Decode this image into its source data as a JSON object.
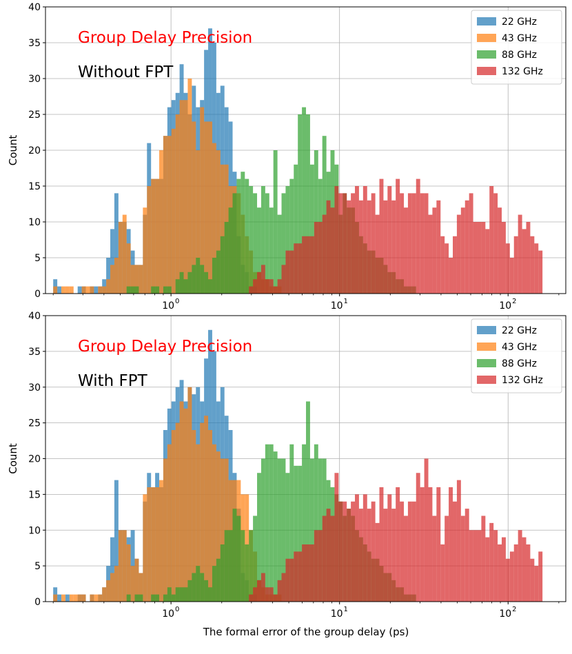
{
  "figure": {
    "xlabel": "The formal error of the group delay (ps)"
  },
  "colors": {
    "22 GHz": "#1f77b4",
    "43 GHz": "#ff7f0e",
    "88 GHz": "#2ca02c",
    "132 GHz": "#d62728"
  },
  "chart_data": [
    {
      "type": "bar",
      "histogram": true,
      "xscale": "log",
      "xlim": [
        0.18,
        220
      ],
      "ylim": [
        0,
        40
      ],
      "yticks": [
        0,
        5,
        10,
        15,
        20,
        25,
        30,
        35,
        40
      ],
      "xticks": [
        {
          "value": 1,
          "label": "10",
          "exp": "0"
        },
        {
          "value": 10,
          "label": "10",
          "exp": "1"
        },
        {
          "value": 100,
          "label": "10",
          "exp": "2"
        }
      ],
      "ylabel": "Count",
      "xlabel": "",
      "grid": true,
      "legend_position": "top-right",
      "annotations": [
        {
          "text": "Group Delay Precision",
          "color": "#ff0000"
        },
        {
          "text": "Without FPT",
          "color": "#000000"
        }
      ],
      "bin_edges_range": [
        0.2,
        160
      ],
      "bin_count": 120,
      "series": [
        {
          "name": "22 GHz",
          "values": [
            2,
            1,
            0,
            0,
            0,
            0,
            1,
            1,
            0,
            1,
            1,
            1,
            2,
            5,
            9,
            14,
            10,
            10,
            9,
            6,
            4,
            4,
            11,
            21,
            16,
            16,
            16,
            22,
            26,
            27,
            28,
            32,
            28,
            25,
            29,
            26,
            27,
            34,
            37,
            35,
            28,
            29,
            26,
            24,
            17,
            8,
            4,
            3,
            1,
            1,
            0,
            0,
            0,
            0,
            0,
            0,
            0,
            0,
            0,
            0,
            0,
            0,
            0,
            0,
            0,
            0,
            0,
            0,
            0,
            0,
            0,
            0,
            0,
            0,
            0,
            0,
            0,
            0,
            0,
            0,
            0,
            0,
            0,
            0,
            0,
            0,
            0,
            0,
            0,
            0,
            0,
            0,
            0,
            0,
            0,
            0,
            0,
            0,
            0,
            0,
            0,
            0,
            0,
            0,
            0,
            0,
            0,
            0,
            0,
            0,
            0,
            0,
            0,
            0,
            0,
            0,
            0,
            0,
            0,
            0
          ]
        },
        {
          "name": "43 GHz",
          "values": [
            1,
            0,
            1,
            1,
            1,
            0,
            0,
            1,
            1,
            1,
            0,
            1,
            1,
            2,
            4,
            5,
            10,
            11,
            7,
            4,
            4,
            4,
            12,
            15,
            16,
            16,
            20,
            22,
            22,
            23,
            25,
            27,
            27,
            30,
            24,
            20,
            26,
            24,
            24,
            21,
            20,
            18,
            18,
            15,
            15,
            14,
            11,
            8,
            6,
            3,
            3,
            2,
            2,
            1,
            1,
            1,
            0,
            0,
            0,
            0,
            0,
            0,
            0,
            0,
            0,
            0,
            0,
            0,
            0,
            0,
            0,
            0,
            0,
            0,
            0,
            0,
            0,
            0,
            0,
            0,
            0,
            0,
            0,
            0,
            0,
            0,
            0,
            0,
            0,
            0,
            0,
            0,
            0,
            0,
            0,
            0,
            0,
            0,
            0,
            0,
            0,
            0,
            0,
            0,
            0,
            0,
            0,
            0,
            0,
            0,
            0,
            0,
            0,
            0,
            0,
            0,
            0,
            0,
            0,
            0
          ]
        },
        {
          "name": "88 GHz",
          "values": [
            0,
            0,
            0,
            0,
            0,
            0,
            0,
            0,
            0,
            0,
            0,
            0,
            0,
            0,
            0,
            0,
            0,
            0,
            1,
            1,
            1,
            0,
            0,
            0,
            1,
            1,
            0,
            1,
            1,
            0,
            2,
            3,
            2,
            3,
            4,
            5,
            4,
            3,
            2,
            5,
            6,
            8,
            10,
            12,
            14,
            16,
            17,
            16,
            15,
            14,
            12,
            15,
            14,
            12,
            20,
            11,
            14,
            15,
            16,
            18,
            25,
            26,
            25,
            18,
            20,
            16,
            22,
            17,
            20,
            18,
            11,
            14,
            12,
            12,
            10,
            8,
            7,
            6,
            6,
            5,
            5,
            4,
            3,
            3,
            2,
            2,
            1,
            1,
            1,
            0,
            0,
            0,
            0,
            0,
            0,
            0,
            0,
            0,
            0,
            0,
            0,
            0,
            0,
            0,
            0,
            0,
            0,
            0,
            0,
            0,
            0,
            0,
            0,
            0,
            0,
            0,
            0,
            0,
            0,
            0
          ]
        },
        {
          "name": "132 GHz",
          "values": [
            0,
            0,
            0,
            0,
            0,
            0,
            0,
            0,
            0,
            0,
            0,
            0,
            0,
            0,
            0,
            0,
            0,
            0,
            0,
            0,
            0,
            0,
            0,
            0,
            0,
            0,
            0,
            0,
            0,
            0,
            0,
            0,
            0,
            0,
            0,
            0,
            0,
            0,
            0,
            0,
            0,
            0,
            0,
            0,
            0,
            0,
            0,
            0,
            1,
            2,
            3,
            4,
            2,
            2,
            1,
            2,
            4,
            6,
            6,
            7,
            7,
            8,
            8,
            8,
            10,
            10,
            11,
            13,
            12,
            15,
            14,
            14,
            13,
            14,
            15,
            13,
            15,
            13,
            14,
            11,
            16,
            13,
            15,
            13,
            16,
            14,
            12,
            14,
            14,
            16,
            14,
            14,
            11,
            12,
            13,
            8,
            7,
            5,
            8,
            11,
            12,
            13,
            14,
            10,
            10,
            10,
            9,
            15,
            14,
            12,
            10,
            7,
            5,
            8,
            11,
            9,
            10,
            8,
            7,
            6
          ]
        }
      ]
    },
    {
      "type": "bar",
      "histogram": true,
      "xscale": "log",
      "xlim": [
        0.18,
        220
      ],
      "ylim": [
        0,
        40
      ],
      "yticks": [
        0,
        5,
        10,
        15,
        20,
        25,
        30,
        35,
        40
      ],
      "xticks": [
        {
          "value": 1,
          "label": "10",
          "exp": "0"
        },
        {
          "value": 10,
          "label": "10",
          "exp": "1"
        },
        {
          "value": 100,
          "label": "10",
          "exp": "2"
        }
      ],
      "ylabel": "Count",
      "xlabel": "The formal error of the group delay (ps)",
      "grid": true,
      "legend_position": "top-right",
      "annotations": [
        {
          "text": "Group Delay Precision",
          "color": "#ff0000"
        },
        {
          "text": "With FPT",
          "color": "#000000"
        }
      ],
      "bin_edges_range": [
        0.2,
        160
      ],
      "bin_count": 120,
      "series": [
        {
          "name": "22 GHz",
          "values": [
            2,
            1,
            0,
            1,
            0,
            0,
            1,
            1,
            0,
            1,
            0,
            1,
            2,
            5,
            9,
            17,
            10,
            10,
            9,
            10,
            6,
            4,
            14,
            18,
            16,
            18,
            16,
            24,
            27,
            28,
            30,
            31,
            28,
            30,
            29,
            30,
            28,
            34,
            38,
            35,
            28,
            30,
            26,
            24,
            18,
            13,
            4,
            3,
            1,
            1,
            0,
            0,
            0,
            0,
            0,
            0,
            0,
            0,
            0,
            0,
            0,
            0,
            0,
            0,
            0,
            0,
            0,
            0,
            0,
            0,
            0,
            0,
            0,
            0,
            0,
            0,
            0,
            0,
            0,
            0,
            0,
            0,
            0,
            0,
            0,
            0,
            0,
            0,
            0,
            0,
            0,
            0,
            0,
            0,
            0,
            0,
            0,
            0,
            0,
            0,
            0,
            0,
            0,
            0,
            0,
            0,
            0,
            0,
            0,
            0,
            0,
            0,
            0,
            0,
            0,
            0,
            0,
            0,
            0,
            0
          ]
        },
        {
          "name": "43 GHz",
          "values": [
            1,
            0,
            1,
            0,
            1,
            1,
            1,
            1,
            0,
            1,
            1,
            1,
            2,
            3,
            4,
            5,
            10,
            10,
            8,
            5,
            6,
            4,
            15,
            16,
            16,
            16,
            17,
            20,
            22,
            24,
            25,
            28,
            27,
            30,
            24,
            22,
            25,
            26,
            24,
            22,
            21,
            20,
            20,
            17,
            17,
            17,
            15,
            15,
            10,
            7,
            3,
            2,
            1,
            1,
            1,
            1,
            0,
            0,
            0,
            0,
            0,
            0,
            0,
            0,
            0,
            0,
            0,
            0,
            0,
            0,
            0,
            0,
            0,
            0,
            0,
            0,
            0,
            0,
            0,
            0,
            0,
            0,
            0,
            0,
            0,
            0,
            0,
            0,
            0,
            0,
            0,
            0,
            0,
            0,
            0,
            0,
            0,
            0,
            0,
            0,
            0,
            0,
            0,
            0,
            0,
            0,
            0,
            0,
            0,
            0,
            0,
            0,
            0,
            0,
            0,
            0,
            0,
            0,
            0,
            0
          ]
        },
        {
          "name": "88 GHz",
          "values": [
            0,
            0,
            0,
            0,
            0,
            0,
            0,
            0,
            0,
            0,
            0,
            0,
            0,
            0,
            0,
            0,
            0,
            0,
            1,
            0,
            1,
            1,
            0,
            0,
            1,
            1,
            0,
            1,
            2,
            1,
            2,
            2,
            2,
            3,
            4,
            5,
            4,
            3,
            2,
            5,
            6,
            8,
            10,
            10,
            13,
            12,
            10,
            8,
            10,
            12,
            18,
            20,
            22,
            22,
            21,
            20,
            20,
            18,
            22,
            19,
            19,
            22,
            28,
            20,
            22,
            20,
            20,
            17,
            16,
            15,
            14,
            12,
            13,
            12,
            10,
            9,
            8,
            7,
            6,
            6,
            5,
            4,
            4,
            3,
            2,
            2,
            1,
            1,
            1,
            0,
            0,
            0,
            0,
            0,
            0,
            0,
            0,
            0,
            0,
            0,
            0,
            0,
            0,
            0,
            0,
            0,
            0,
            0,
            0,
            0,
            0,
            0,
            0,
            0,
            0,
            0,
            0,
            0,
            0,
            0
          ]
        },
        {
          "name": "132 GHz",
          "values": [
            0,
            0,
            0,
            0,
            0,
            0,
            0,
            0,
            0,
            0,
            0,
            0,
            0,
            0,
            0,
            0,
            0,
            0,
            0,
            0,
            0,
            0,
            0,
            0,
            0,
            0,
            0,
            0,
            0,
            0,
            0,
            0,
            0,
            0,
            0,
            0,
            0,
            0,
            0,
            0,
            0,
            0,
            0,
            0,
            0,
            0,
            0,
            0,
            1,
            2,
            3,
            4,
            2,
            2,
            1,
            3,
            4,
            6,
            6,
            7,
            7,
            8,
            8,
            8,
            10,
            10,
            12,
            13,
            12,
            18,
            14,
            14,
            13,
            14,
            15,
            13,
            15,
            13,
            14,
            11,
            16,
            13,
            15,
            13,
            16,
            14,
            12,
            14,
            14,
            18,
            16,
            20,
            16,
            12,
            16,
            8,
            12,
            16,
            14,
            17,
            12,
            13,
            10,
            10,
            10,
            12,
            9,
            11,
            10,
            8,
            9,
            6,
            7,
            8,
            10,
            9,
            8,
            6,
            5,
            7
          ]
        }
      ]
    }
  ]
}
